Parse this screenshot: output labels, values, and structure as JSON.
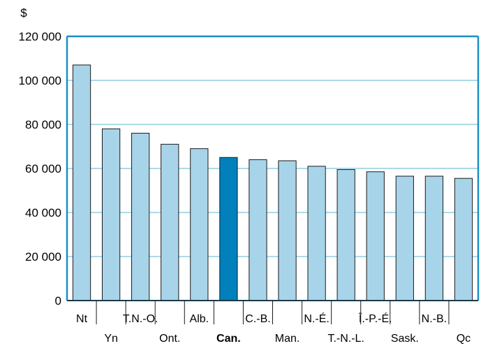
{
  "chart_data": {
    "type": "bar",
    "title": "",
    "xlabel": "",
    "ylabel": "$",
    "ylim": [
      0,
      120000
    ],
    "y_ticks": [
      {
        "value": 0,
        "label": "0"
      },
      {
        "value": 20000,
        "label": "20 000"
      },
      {
        "value": 40000,
        "label": "40 000"
      },
      {
        "value": 60000,
        "label": "60 000"
      },
      {
        "value": 80000,
        "label": "80 000"
      },
      {
        "value": 100000,
        "label": "100 000"
      },
      {
        "value": 120000,
        "label": "120 000"
      }
    ],
    "grid": true,
    "categories": [
      "Nt",
      "Yn",
      "T.N.-O.",
      "Ont.",
      "Alb.",
      "Can.",
      "C.-B.",
      "Man.",
      "N.-É.",
      "T.-N.-L.",
      "Î.-P.-É.",
      "Sask.",
      "N.-B.",
      "Qc"
    ],
    "values": [
      107000,
      78000,
      76000,
      71000,
      69000,
      65000,
      64000,
      63500,
      61000,
      59500,
      58500,
      56500,
      56500,
      55500
    ],
    "highlight_category": "Can.",
    "colors": {
      "bar": "#a8d4ea",
      "bar_highlight": "#0081bb",
      "bar_edge": "#1a1a1a",
      "grid": "#7cc3db",
      "frame": "#1a8fc5"
    }
  }
}
